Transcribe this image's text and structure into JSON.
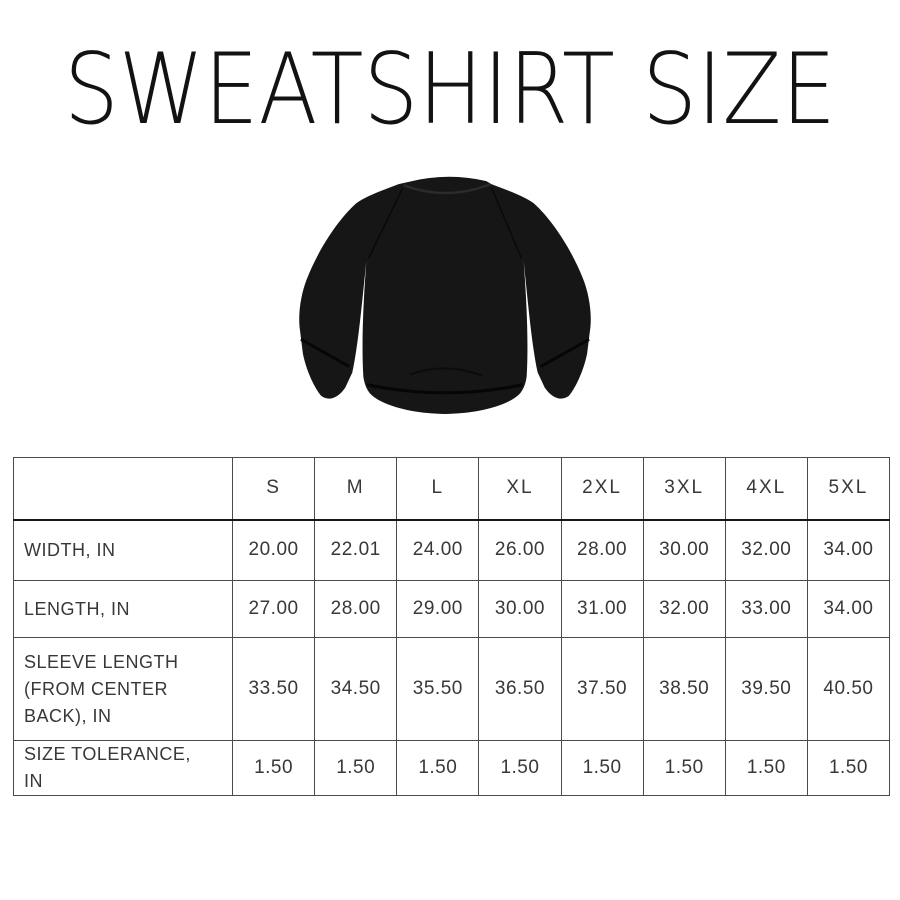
{
  "title": {
    "text": "SWEATSHIRT SIZE",
    "color": "#121212"
  },
  "product_image": {
    "description": "black crewneck raglan sweatshirt, back view",
    "garment_color": "#161616",
    "background_color": "#ffffff"
  },
  "size_table": {
    "border_color": "#4b4b4b",
    "text_color": "#383838",
    "corner_label": "",
    "columns": [
      "S",
      "M",
      "L",
      "XL",
      "2XL",
      "3XL",
      "4XL",
      "5XL"
    ],
    "rows": [
      {
        "label": "WIDTH, IN",
        "values": [
          "20.00",
          "22.01",
          "24.00",
          "26.00",
          "28.00",
          "30.00",
          "32.00",
          "34.00"
        ]
      },
      {
        "label": "LENGTH, IN",
        "values": [
          "27.00",
          "28.00",
          "29.00",
          "30.00",
          "31.00",
          "32.00",
          "33.00",
          "34.00"
        ]
      },
      {
        "label": "SLEEVE LENGTH (FROM CENTER BACK), IN",
        "values": [
          "33.50",
          "34.50",
          "35.50",
          "36.50",
          "37.50",
          "38.50",
          "39.50",
          "40.50"
        ]
      },
      {
        "label": "SIZE TOLERANCE, IN",
        "values": [
          "1.50",
          "1.50",
          "1.50",
          "1.50",
          "1.50",
          "1.50",
          "1.50",
          "1.50"
        ]
      }
    ]
  },
  "chart_data": {
    "type": "table",
    "title": "SWEATSHIRT SIZE",
    "columns": [
      "",
      "S",
      "M",
      "L",
      "XL",
      "2XL",
      "3XL",
      "4XL",
      "5XL"
    ],
    "rows": [
      [
        "WIDTH, IN",
        20.0,
        22.01,
        24.0,
        26.0,
        28.0,
        30.0,
        32.0,
        34.0
      ],
      [
        "LENGTH, IN",
        27.0,
        28.0,
        29.0,
        30.0,
        31.0,
        32.0,
        33.0,
        34.0
      ],
      [
        "SLEEVE LENGTH (FROM CENTER BACK), IN",
        33.5,
        34.5,
        35.5,
        36.5,
        37.5,
        38.5,
        39.5,
        40.5
      ],
      [
        "SIZE TOLERANCE, IN",
        1.5,
        1.5,
        1.5,
        1.5,
        1.5,
        1.5,
        1.5,
        1.5
      ]
    ],
    "units": "inches"
  }
}
